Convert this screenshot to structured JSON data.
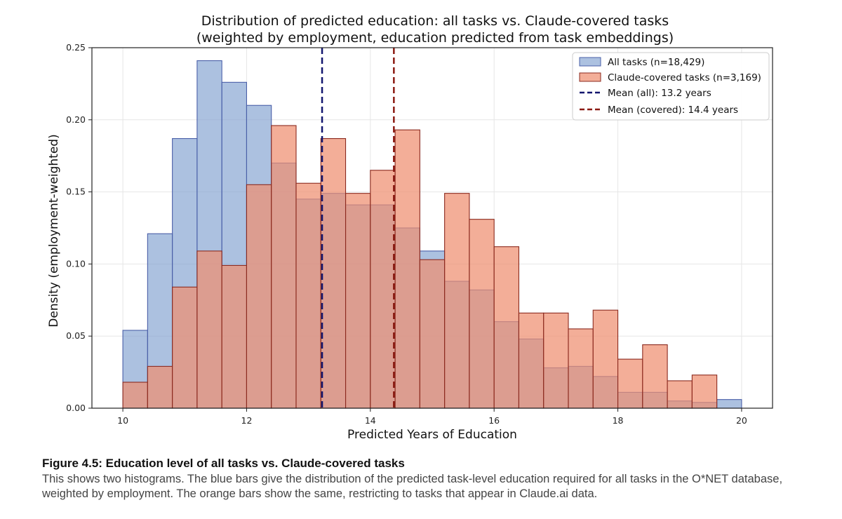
{
  "chart_data": {
    "type": "bar",
    "title": "Distribution of predicted education: all tasks vs. Claude-covered tasks",
    "subtitle": "(weighted by employment, education predicted from task embeddings)",
    "xlabel": "Predicted Years of Education",
    "ylabel": "Density (employment-weighted)",
    "xlim": [
      9.5,
      20.5
    ],
    "ylim": [
      0,
      0.25
    ],
    "xticks": [
      10,
      12,
      14,
      16,
      18,
      20
    ],
    "xtick_labels": [
      "10",
      "12",
      "14",
      "16",
      "18",
      "20"
    ],
    "yticks": [
      0.0,
      0.05,
      0.1,
      0.15,
      0.2,
      0.25
    ],
    "ytick_labels": [
      "0.00",
      "0.05",
      "0.10",
      "0.15",
      "0.20",
      "0.25"
    ],
    "grid": true,
    "legend_position": "top-right",
    "bin_edges": [
      10.0,
      10.4,
      10.8,
      11.2,
      11.6,
      12.0,
      12.4,
      12.8,
      13.2,
      13.6,
      14.0,
      14.4,
      14.8,
      15.2,
      15.6,
      16.0,
      16.4,
      16.8,
      17.2,
      17.6,
      18.0,
      18.4,
      18.8,
      19.2,
      19.6,
      20.0
    ],
    "series": [
      {
        "name": "All tasks (n=18,429)",
        "color": "#7fa0cf",
        "edge_color": "#4a5fa8",
        "values": [
          0.054,
          0.121,
          0.187,
          0.241,
          0.226,
          0.21,
          0.17,
          0.145,
          0.149,
          0.141,
          0.141,
          0.125,
          0.109,
          0.088,
          0.082,
          0.06,
          0.048,
          0.028,
          0.029,
          0.022,
          0.011,
          0.011,
          0.005,
          0.004,
          0.006
        ]
      },
      {
        "name": "Claude-covered tasks (n=3,169)",
        "color": "#ef8f70",
        "edge_color": "#8b2a1f",
        "values": [
          0.018,
          0.029,
          0.084,
          0.109,
          0.099,
          0.155,
          0.196,
          0.156,
          0.187,
          0.149,
          0.165,
          0.193,
          0.103,
          0.149,
          0.131,
          0.112,
          0.066,
          0.066,
          0.055,
          0.068,
          0.034,
          0.044,
          0.019,
          0.023,
          0.0
        ]
      }
    ],
    "mean_lines": [
      {
        "name": "Mean (all): 13.2 years",
        "x": 13.22,
        "color": "#12166e"
      },
      {
        "name": "Mean (covered): 14.4 years",
        "x": 14.38,
        "color": "#8b1a12"
      }
    ]
  },
  "caption": {
    "title": "Figure 4.5: Education level of all tasks vs. Claude-covered tasks",
    "body": "This shows two histograms. The blue bars give the distribution of the predicted task-level education required for all tasks in the O*NET database, weighted by employment. The orange bars show the same, restricting to tasks that appear in Claude.ai data."
  }
}
